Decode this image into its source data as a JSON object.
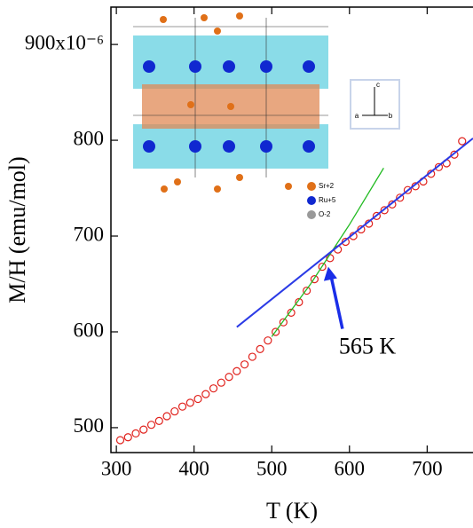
{
  "chart_data": {
    "type": "scatter",
    "xlabel": "T (K)",
    "ylabel": "M/H (emu/mol)",
    "xlim": [
      293,
      759
    ],
    "ylim": [
      474,
      939
    ],
    "xticks": [
      300,
      400,
      500,
      600,
      700
    ],
    "yticks": [
      500,
      600,
      700,
      800,
      {
        "value": 900,
        "label": "900x10⁻⁶"
      }
    ],
    "series": [
      {
        "color": "#e0201b",
        "marker": "open-circle",
        "x": [
          305,
          315,
          325,
          335,
          345,
          355,
          365,
          375,
          385,
          395,
          405,
          415,
          425,
          435,
          445,
          455,
          465,
          475,
          485,
          495,
          505,
          515,
          525,
          535,
          545,
          555,
          565,
          575,
          585,
          595,
          605,
          615,
          625,
          635,
          645,
          655,
          665,
          675,
          685,
          695,
          705,
          715,
          725,
          735,
          745
        ],
        "values": [
          487,
          490,
          494,
          498,
          503,
          507,
          512,
          517,
          522,
          526,
          530,
          535,
          541,
          547,
          553,
          559,
          566,
          574,
          582,
          591,
          600,
          610,
          620,
          631,
          643,
          655,
          668,
          677,
          686,
          694,
          700,
          707,
          713,
          721,
          727,
          733,
          740,
          748,
          752,
          757,
          765,
          772,
          776,
          785,
          799
        ]
      },
      {
        "color": "#22bb22",
        "marker": "line",
        "x": [
          500,
          550,
          600,
          644
        ],
        "values": [
          595,
          650,
          712,
          771
        ]
      },
      {
        "color": "#2b3be6",
        "marker": "line",
        "x": [
          455,
          759
        ],
        "values": [
          605,
          802
        ]
      }
    ],
    "annotation": {
      "text": "565 K",
      "x": 575,
      "y": 668,
      "color": "#1a2ee8"
    },
    "inset": {
      "legend": [
        "Sr+2",
        "Ru+5",
        "O-2"
      ],
      "axes": [
        "a",
        "b",
        "c"
      ]
    }
  }
}
